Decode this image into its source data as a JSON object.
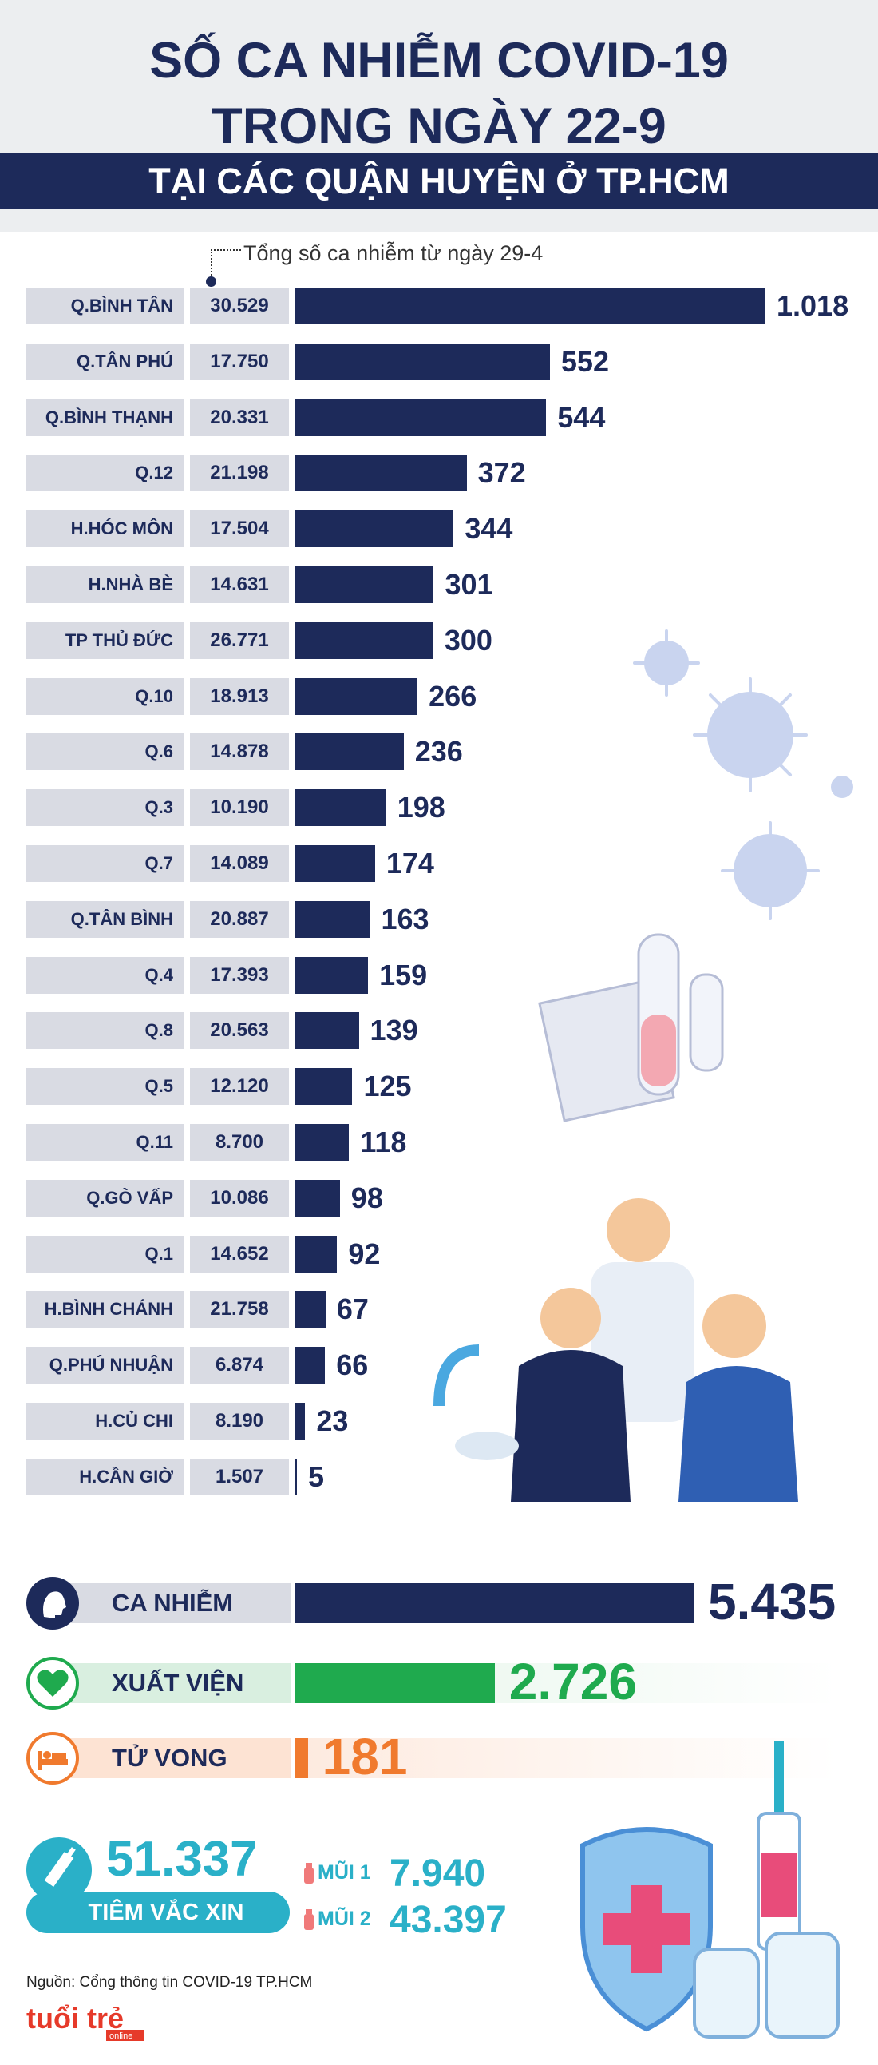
{
  "header": {
    "title_line1": "SỐ CA NHIỄM COVID-19",
    "title_line2": "TRONG NGÀY 22-9",
    "subtitle": "TẠI CÁC QUẬN HUYỆN Ở TP.HCM"
  },
  "legend": {
    "total_label": "Tổng số ca nhiễm từ ngày 29-4"
  },
  "chart_data": {
    "type": "bar",
    "orientation": "horizontal",
    "categories": [
      "Q.BÌNH TÂN",
      "Q.TÂN PHÚ",
      "Q.BÌNH THẠNH",
      "Q.12",
      "H.HÓC MÔN",
      "H.NHÀ BÈ",
      "TP THỦ ĐỨC",
      "Q.10",
      "Q.6",
      "Q.3",
      "Q.7",
      "Q.TÂN BÌNH",
      "Q.4",
      "Q.8",
      "Q.5",
      "Q.11",
      "Q.GÒ VẤP",
      "Q.1",
      "H.BÌNH CHÁNH",
      "Q.PHÚ NHUẬN",
      "H.CỦ CHI",
      "H.CẦN GIỜ"
    ],
    "totals": [
      "30.529",
      "17.750",
      "20.331",
      "21.198",
      "17.504",
      "14.631",
      "26.771",
      "18.913",
      "14.878",
      "10.190",
      "14.089",
      "20.887",
      "17.393",
      "20.563",
      "12.120",
      "8.700",
      "10.086",
      "14.652",
      "21.758",
      "6.874",
      "8.190",
      "1.507"
    ],
    "values": [
      1018,
      552,
      544,
      372,
      344,
      301,
      300,
      266,
      236,
      198,
      174,
      163,
      159,
      139,
      125,
      118,
      98,
      92,
      67,
      66,
      23,
      5
    ],
    "value_labels": [
      "1.018",
      "552",
      "544",
      "372",
      "344",
      "301",
      "300",
      "266",
      "236",
      "198",
      "174",
      "163",
      "159",
      "139",
      "125",
      "118",
      "98",
      "92",
      "67",
      "66",
      "23",
      "5"
    ],
    "xlim": [
      0,
      1018
    ]
  },
  "summary": {
    "infected": {
      "label": "CA NHIỄM",
      "value": 5435,
      "value_text": "5.435",
      "color": "#1d2a5a"
    },
    "discharged": {
      "label": "XUẤT VIỆN",
      "value": 2726,
      "value_text": "2.726",
      "color": "#1faa4e"
    },
    "deaths": {
      "label": "TỬ VONG",
      "value": 181,
      "value_text": "181",
      "color": "#f07a2e"
    },
    "scale_max": 5435
  },
  "vaccination": {
    "total": "51.337",
    "label": "TIÊM VẮC XIN",
    "dose1_label": "MŨI 1",
    "dose1_value": "7.940",
    "dose2_label": "MŨI 2",
    "dose2_value": "43.397",
    "color": "#2ab0c8"
  },
  "footer": {
    "source": "Nguồn: Cổng thông tin COVID-19 TP.HCM",
    "logo_text": "tuổi trẻ",
    "logo_sub": "online"
  }
}
